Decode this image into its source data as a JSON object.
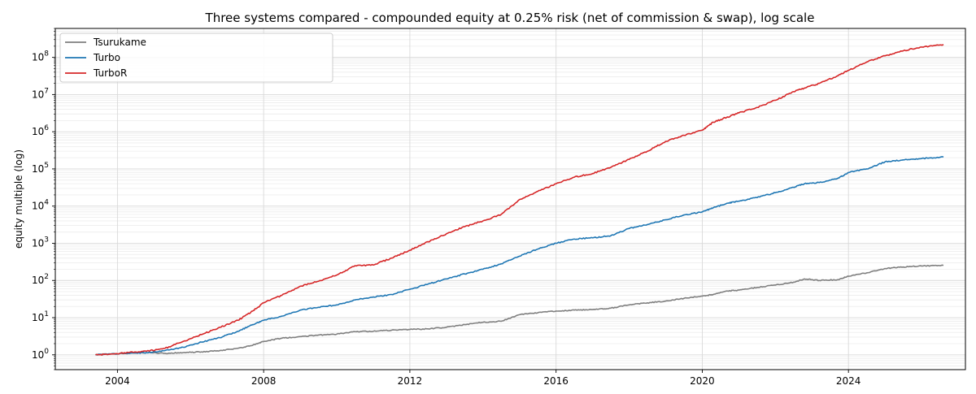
{
  "chart_data": {
    "type": "line",
    "title": "Three systems compared - compounded equity at 0.25% risk (net of commission & swap), log scale",
    "xlabel": "",
    "ylabel": "equity multiple (log)",
    "y_scale": "log",
    "xlim": [
      2002.3,
      2027.2
    ],
    "ylim": [
      0.4,
      600000000
    ],
    "x_ticks": [
      {
        "value": 2004,
        "label": "2004"
      },
      {
        "value": 2008,
        "label": "2008"
      },
      {
        "value": 2012,
        "label": "2012"
      },
      {
        "value": 2016,
        "label": "2016"
      },
      {
        "value": 2020,
        "label": "2020"
      },
      {
        "value": 2024,
        "label": "2024"
      }
    ],
    "y_ticks": [
      {
        "exp": 0,
        "base": "10",
        "power": "0"
      },
      {
        "exp": 1,
        "base": "10",
        "power": "1"
      },
      {
        "exp": 2,
        "base": "10",
        "power": "2"
      },
      {
        "exp": 3,
        "base": "10",
        "power": "3"
      },
      {
        "exp": 4,
        "base": "10",
        "power": "4"
      },
      {
        "exp": 5,
        "base": "10",
        "power": "5"
      },
      {
        "exp": 6,
        "base": "10",
        "power": "6"
      },
      {
        "exp": 7,
        "base": "10",
        "power": "7"
      },
      {
        "exp": 8,
        "base": "10",
        "power": "8"
      }
    ],
    "grid": true,
    "legend_position": "top-left",
    "series": [
      {
        "name": "Tsurukame",
        "color": "#7f7f7f",
        "x": [
          2003.4,
          2003.8,
          2004.3,
          2004.8,
          2005.3,
          2005.8,
          2006.3,
          2006.8,
          2007.3,
          2007.7,
          2008.0,
          2008.5,
          2009.0,
          2009.5,
          2010.0,
          2010.5,
          2011.0,
          2011.5,
          2012.0,
          2012.5,
          2013.0,
          2013.5,
          2014.0,
          2014.5,
          2015.0,
          2015.5,
          2016.0,
          2016.5,
          2017.0,
          2017.5,
          2018.0,
          2018.5,
          2019.0,
          2019.5,
          2020.0,
          2020.3,
          2020.7,
          2021.0,
          2021.5,
          2022.0,
          2022.5,
          2022.8,
          2023.2,
          2023.7,
          2024.0,
          2024.5,
          2025.0,
          2025.5,
          2026.0,
          2026.6
        ],
        "y": [
          1.0,
          1.05,
          1.1,
          1.15,
          1.1,
          1.15,
          1.2,
          1.3,
          1.5,
          1.8,
          2.3,
          2.8,
          3.1,
          3.4,
          3.6,
          4.2,
          4.3,
          4.6,
          4.8,
          5.0,
          5.5,
          6.5,
          7.5,
          8.0,
          12.0,
          13.5,
          15.0,
          16.0,
          16.5,
          18.0,
          22.0,
          25.0,
          28.0,
          33.0,
          38.0,
          42.0,
          52.0,
          55.0,
          65.0,
          75.0,
          90.0,
          110.0,
          100.0,
          105.0,
          130.0,
          160.0,
          210.0,
          230.0,
          245.0,
          255.0
        ]
      },
      {
        "name": "Turbo",
        "color": "#1f77b4",
        "x": [
          2003.4,
          2003.8,
          2004.3,
          2004.8,
          2005.3,
          2005.8,
          2006.3,
          2006.8,
          2007.3,
          2007.7,
          2008.0,
          2008.5,
          2009.0,
          2009.5,
          2010.0,
          2010.5,
          2011.0,
          2011.5,
          2012.0,
          2012.5,
          2013.0,
          2013.5,
          2014.0,
          2014.5,
          2015.0,
          2015.5,
          2016.0,
          2016.5,
          2017.0,
          2017.5,
          2018.0,
          2018.5,
          2019.0,
          2019.5,
          2020.0,
          2020.3,
          2020.7,
          2021.0,
          2021.5,
          2022.0,
          2022.5,
          2022.8,
          2023.2,
          2023.7,
          2024.0,
          2024.5,
          2025.0,
          2025.5,
          2026.0,
          2026.6
        ],
        "y": [
          1.0,
          1.05,
          1.1,
          1.15,
          1.3,
          1.6,
          2.2,
          2.9,
          4.3,
          6.5,
          8.5,
          11.0,
          16.0,
          19.0,
          22.0,
          30.0,
          36.0,
          42.0,
          58.0,
          80.0,
          110.0,
          150.0,
          200.0,
          280.0,
          450.0,
          700.0,
          1000.0,
          1300.0,
          1400.0,
          1600.0,
          2500.0,
          3200.0,
          4300.0,
          5800.0,
          7000.0,
          9000.0,
          12000.0,
          13500.0,
          17000.0,
          23000.0,
          32000.0,
          40000.0,
          43000.0,
          55000.0,
          80000.0,
          100000.0,
          155000.0,
          175000.0,
          190000.0,
          210000.0
        ]
      },
      {
        "name": "TurboR",
        "color": "#d62728",
        "x": [
          2003.4,
          2003.8,
          2004.3,
          2004.8,
          2005.3,
          2005.8,
          2006.3,
          2006.8,
          2007.3,
          2007.7,
          2008.0,
          2008.5,
          2009.0,
          2009.5,
          2010.0,
          2010.5,
          2011.0,
          2011.5,
          2012.0,
          2012.5,
          2013.0,
          2013.5,
          2014.0,
          2014.5,
          2015.0,
          2015.5,
          2016.0,
          2016.5,
          2017.0,
          2017.5,
          2018.0,
          2018.5,
          2019.0,
          2019.5,
          2020.0,
          2020.3,
          2020.7,
          2021.0,
          2021.5,
          2022.0,
          2022.5,
          2022.8,
          2023.2,
          2023.7,
          2024.0,
          2024.5,
          2025.0,
          2025.5,
          2026.0,
          2026.6
        ],
        "y": [
          1.0,
          1.05,
          1.15,
          1.25,
          1.5,
          2.3,
          3.5,
          5.5,
          8.5,
          15.0,
          25.0,
          40.0,
          70.0,
          95.0,
          140.0,
          250.0,
          260.0,
          400.0,
          650.0,
          1100.0,
          1800.0,
          2800.0,
          4000.0,
          6000.0,
          15000.0,
          25000.0,
          40000.0,
          60000.0,
          75000.0,
          110000.0,
          180000.0,
          300000.0,
          550000.0,
          800000.0,
          1100000.0,
          1800000.0,
          2500000.0,
          3200000.0,
          4500000.0,
          7000000.0,
          12000000.0,
          15000000.0,
          20000000.0,
          32000000.0,
          45000000.0,
          75000000.0,
          110000000.0,
          150000000.0,
          190000000.0,
          220000000.0
        ]
      }
    ]
  }
}
